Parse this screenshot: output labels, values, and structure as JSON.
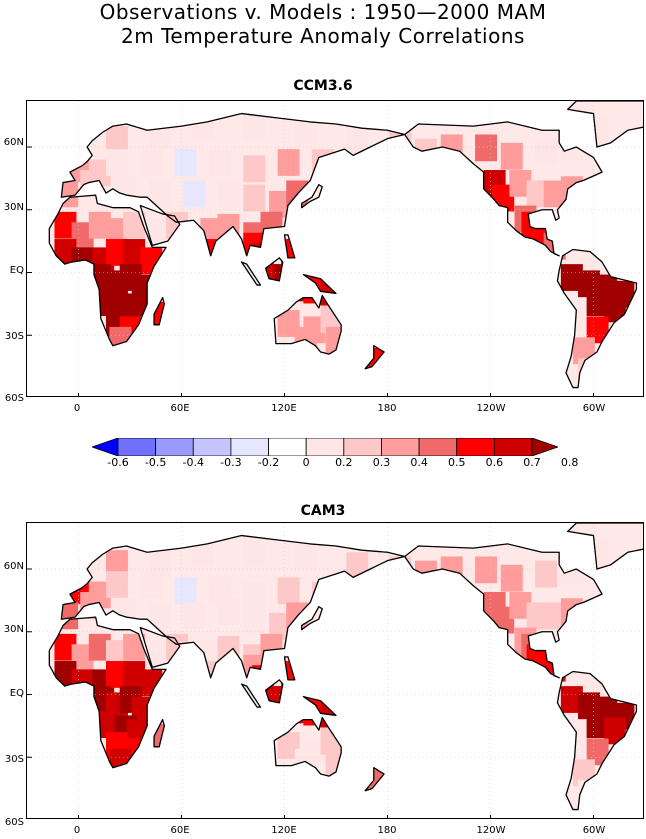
{
  "title_line1": "Observations v. Models : 1950—2000 MAM",
  "title_line2": "2m Temperature Anomaly Correlations",
  "panels": [
    {
      "name": "CCM3.6"
    },
    {
      "name": "CAM3"
    }
  ],
  "y_ticks": [
    "60N",
    "30N",
    "EQ",
    "30S",
    "60S"
  ],
  "x_ticks": [
    "0",
    "60E",
    "120E",
    "180",
    "120W",
    "60W"
  ],
  "colorbar": {
    "labels": [
      "-0.6",
      "-0.5",
      "-0.4",
      "-0.3",
      "-0.2",
      "0",
      "0.2",
      "0.3",
      "0.4",
      "0.5",
      "0.6",
      "0.7",
      "0.8"
    ],
    "colors": [
      "#0000ff",
      "#7070ff",
      "#9a9aff",
      "#c4c4ff",
      "#e6e6ff",
      "#ffffff",
      "#ffe6e6",
      "#ffc8c8",
      "#ff9c9c",
      "#f06a6a",
      "#ff0000",
      "#d00000",
      "#a00000"
    ]
  }
}
